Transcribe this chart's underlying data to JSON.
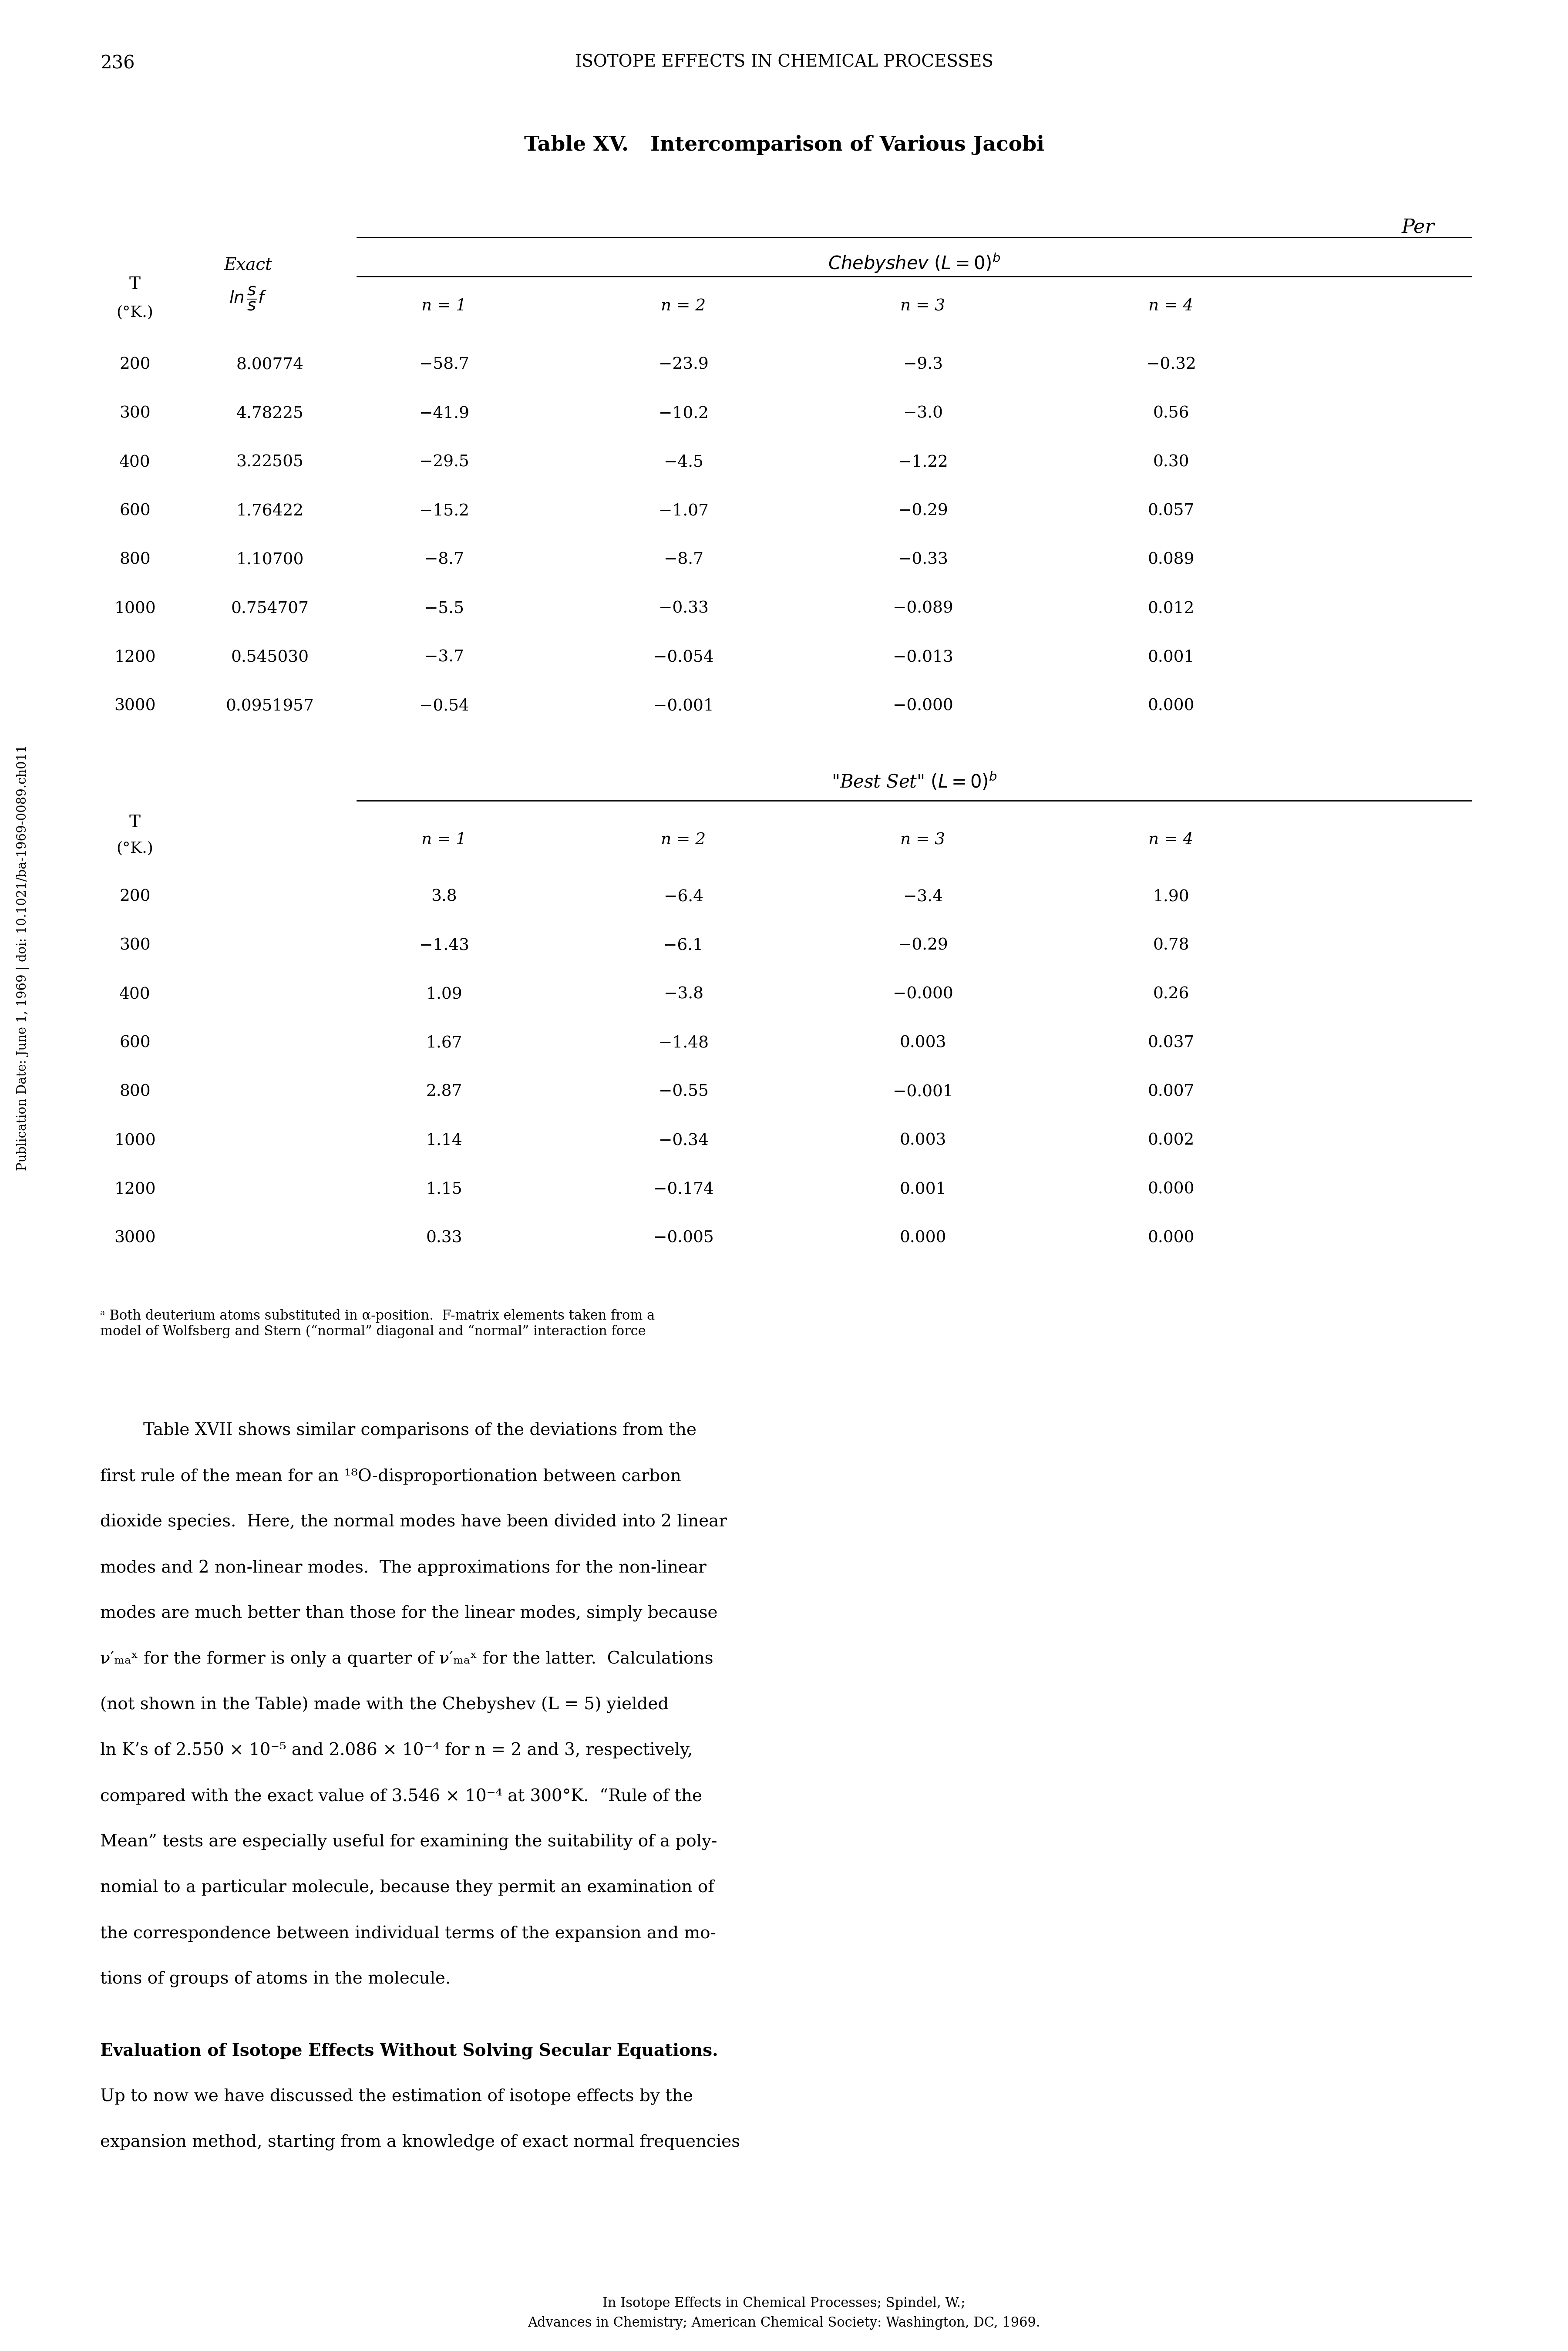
{
  "page_number": "236",
  "header": "ISOTOPE EFFECTS IN CHEMICAL PROCESSES",
  "table_title_bold": "Table XV.",
  "table_title_rest": "  Intercomparison of Various Jacobi",
  "per_label": "Per",
  "T_values": [
    200,
    300,
    400,
    600,
    800,
    1000,
    1200,
    3000
  ],
  "exact_values": [
    "8.00774",
    "4.78225",
    "3.22505",
    "1.76422",
    "1.10700",
    "0.754707",
    "0.545030",
    "0.0951957"
  ],
  "chebyshev_data": [
    [
      "−58.7",
      "−23.9",
      "−9.3",
      "−0.32"
    ],
    [
      "−41.9",
      "−10.2",
      "−3.0",
      "0.56"
    ],
    [
      "−29.5",
      "−4.5",
      "−1.22",
      "0.30"
    ],
    [
      "−15.2",
      "−1.07",
      "−0.29",
      "0.057"
    ],
    [
      "−8.7",
      "−8.7",
      "−0.33",
      "0.089"
    ],
    [
      "−5.5",
      "−0.33",
      "−0.089",
      "0.012"
    ],
    [
      "−3.7",
      "−0.054",
      "−0.013",
      "0.001"
    ],
    [
      "−0.54",
      "−0.001",
      "−0.000",
      "0.000"
    ]
  ],
  "bestset_data": [
    [
      "3.8",
      "−6.4",
      "−3.4",
      "1.90"
    ],
    [
      "−1.43",
      "−6.1",
      "−0.29",
      "0.78"
    ],
    [
      "1.09",
      "−3.8",
      "−0.000",
      "0.26"
    ],
    [
      "1.67",
      "−1.48",
      "0.003",
      "0.037"
    ],
    [
      "2.87",
      "−0.55",
      "−0.001",
      "0.007"
    ],
    [
      "1.14",
      "−0.34",
      "0.003",
      "0.002"
    ],
    [
      "1.15",
      "−0.174",
      "0.001",
      "0.000"
    ],
    [
      "0.33",
      "−0.005",
      "0.000",
      "0.000"
    ]
  ],
  "footnote": "ᵃ Both deuterium atoms substituted in α-position.  F-matrix elements taken from a\nmodel of Wolfsberg and Stern (“normal” diagonal and “normal” interaction force",
  "para_lines": [
    "        Table XVII shows similar comparisons of the deviations from the",
    "first rule of the mean for an ¹⁸O-disproportionation between carbon",
    "dioxide species.  Here, the normal modes have been divided into 2 linear",
    "modes and 2 non-linear modes.  The approximations for the non-linear",
    "modes are much better than those for the linear modes, simply because",
    "ν′ₘₐˣ for the former is only a quarter of ν′ₘₐˣ for the latter.  Calculations",
    "(not shown in the Table) made with the Chebyshev (L = 5) yielded",
    "ln K’s of 2.550 × 10⁻⁵ and 2.086 × 10⁻⁴ for n = 2 and 3, respectively,",
    "compared with the exact value of 3.546 × 10⁻⁴ at 300°K.  “Rule of the",
    "Mean” tests are especially useful for examining the suitability of a poly-",
    "nomial to a particular molecule, because they permit an examination of",
    "the correspondence between individual terms of the expansion and mo-",
    "tions of groups of atoms in the molecule."
  ],
  "bold_head": "Evaluation of Isotope Effects Without Solving Secular Equations.",
  "after_bold_lines": [
    "Up to now we have discussed the estimation of isotope effects by the",
    "expansion method, starting from a knowledge of exact normal frequencies"
  ],
  "footer1": "In Isotope Effects in Chemical Processes; Spindel, W.;",
  "footer2": "Advances in Chemistry; American Chemical Society: Washington, DC, 1969.",
  "sidebar": "Publication Date: June 1, 1969 | doi: 10.1021/ba-1969-0089.ch011",
  "bg_color": "#ffffff"
}
